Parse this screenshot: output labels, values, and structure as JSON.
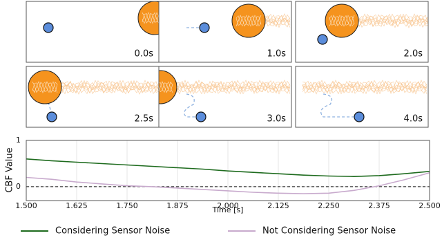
{
  "panels": [
    {
      "label": "0.0s"
    },
    {
      "label": "1.0s"
    },
    {
      "label": "2.0s"
    },
    {
      "label": "2.5s"
    },
    {
      "label": "3.0s"
    },
    {
      "label": "4.0s"
    }
  ],
  "chart_data": {
    "type": "line",
    "xlabel": "Time [s]",
    "ylabel": "CBF Value",
    "x": [
      1.5,
      1.5625,
      1.625,
      1.6875,
      1.75,
      1.8125,
      1.875,
      1.9375,
      2.0,
      2.0625,
      2.125,
      2.1875,
      2.25,
      2.3125,
      2.375,
      2.4375,
      2.5
    ],
    "series": [
      {
        "name": "Considering Sensor Noise",
        "color": "#1e6b1e",
        "values": [
          0.6,
          0.56,
          0.53,
          0.5,
          0.47,
          0.44,
          0.41,
          0.38,
          0.34,
          0.31,
          0.28,
          0.25,
          0.23,
          0.22,
          0.24,
          0.28,
          0.33
        ]
      },
      {
        "name": "Not Considering Sensor Noise",
        "color": "#c8aacd",
        "values": [
          0.2,
          0.16,
          0.1,
          0.06,
          0.02,
          0.0,
          -0.03,
          -0.06,
          -0.09,
          -0.12,
          -0.14,
          -0.15,
          -0.14,
          -0.08,
          0.02,
          0.15,
          0.3
        ]
      }
    ],
    "xlim": [
      1.5,
      2.5
    ],
    "xticks": [
      {
        "value": 1.5,
        "label": "1.500"
      },
      {
        "value": 1.625,
        "label": "1.625"
      },
      {
        "value": 1.75,
        "label": "1.750"
      },
      {
        "value": 1.875,
        "label": "1.875"
      },
      {
        "value": 2.0,
        "label": "2.000"
      },
      {
        "value": 2.125,
        "label": "2.125"
      },
      {
        "value": 2.25,
        "label": "2.250"
      },
      {
        "value": 2.375,
        "label": "2.375"
      },
      {
        "value": 2.5,
        "label": "2.500"
      }
    ],
    "ylim": [
      -0.3,
      1
    ],
    "yticks": [
      0,
      1
    ],
    "hline": 0,
    "grid": true
  }
}
